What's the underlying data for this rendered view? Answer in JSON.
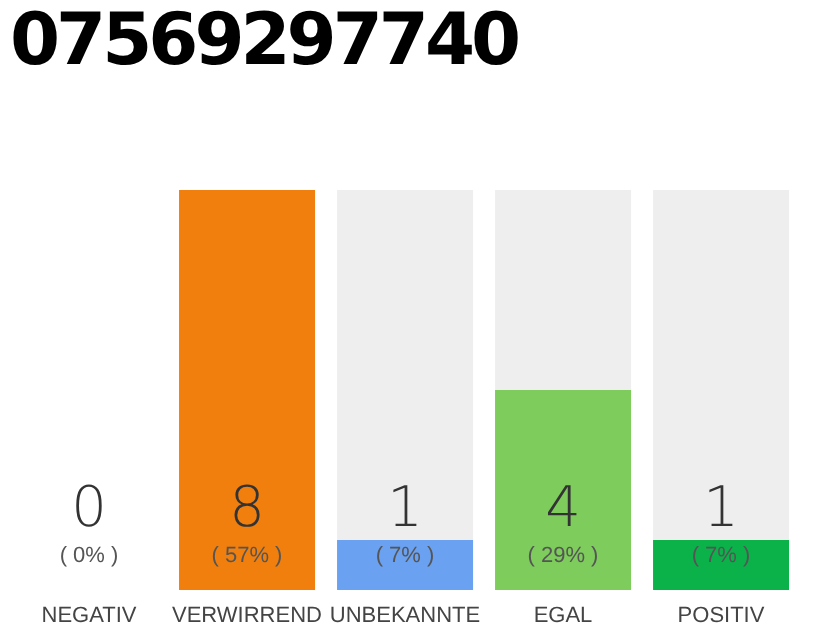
{
  "chart_data": {
    "type": "bar",
    "title": "07569297740",
    "categories": [
      "NEGATIV",
      "VERWIRREND",
      "UNBEKANNTE",
      "EGAL",
      "POSITIV"
    ],
    "values": [
      0,
      8,
      1,
      4,
      1
    ],
    "colors": [
      "#e8312f",
      "#f07f0d",
      "#6aa1f0",
      "#7dcc5c",
      "#0bb24a"
    ],
    "data_labels": true,
    "annotations": [
      "( 0% )",
      "( 57% )",
      "( 7% )",
      "( 29% )",
      "( 7% )"
    ],
    "grid": false,
    "legend": false
  }
}
